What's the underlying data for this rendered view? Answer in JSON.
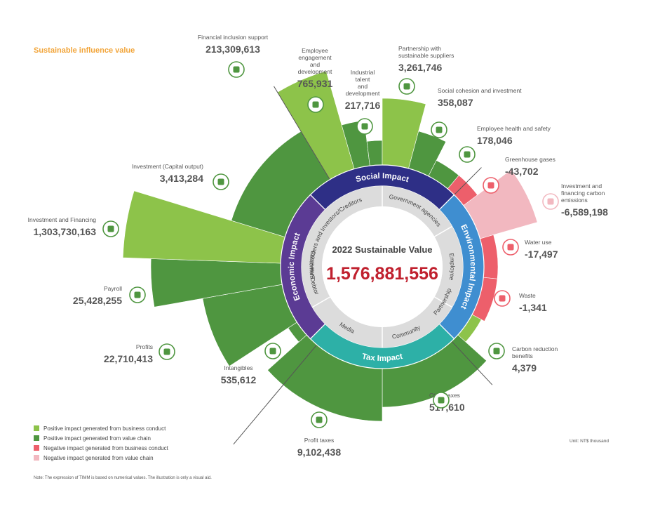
{
  "header": {
    "title": "Sustainable influence value"
  },
  "center": {
    "title": "2022 Sustainable Value",
    "value": "1,576,881,556"
  },
  "rings": {
    "outer": [
      "Social Impact",
      "Environmental Impact",
      "Tax Impact",
      "Economic Impact"
    ],
    "inner": [
      "Shareholders and Investors/Creditors",
      "Government agencies",
      "Employee",
      "Partnership",
      "Community",
      "Media",
      "Customer/Debtor"
    ]
  },
  "colors": {
    "pos_business": "#8dc34a",
    "pos_chain": "#4f9640",
    "neg_business": "#ed5f6b",
    "neg_chain": "#f2b8c0",
    "social": "#2e2f86",
    "environmental": "#3f8ed0",
    "tax": "#2db0a7",
    "economic": "#5b3b94",
    "center_value": "#c0202e",
    "header": "#f2a53a"
  },
  "chart_data": {
    "type": "radial-bar",
    "title": "Sustainable influence value",
    "unit": "Unit: NT$ thousand",
    "items": [
      {
        "label": "Financial inclusion support",
        "value": 213309613,
        "display": "213,309,613",
        "category": "pos_business",
        "icon": "dollar-icon"
      },
      {
        "label": "Employee engagement and development",
        "value": 765931,
        "display": "765,931",
        "category": "pos_chain",
        "icon": "presentation-icon"
      },
      {
        "label": "Industrial talent and development",
        "value": 217716,
        "display": "217,716",
        "category": "pos_chain",
        "icon": "graduation-cap-icon"
      },
      {
        "label": "Partnership with sustainable suppliers",
        "value": 3261746,
        "display": "3,261,746",
        "category": "pos_business",
        "icon": "handshake-icon"
      },
      {
        "label": "Social cohesion and investment",
        "value": 358087,
        "display": "358,087",
        "category": "pos_chain",
        "icon": "growth-chart-icon"
      },
      {
        "label": "Employee health and safety",
        "value": 178046,
        "display": "178,046",
        "category": "pos_chain",
        "icon": "health-person-icon"
      },
      {
        "label": "Greenhouse gases",
        "value": -43702,
        "display": "-43,702",
        "category": "neg_business",
        "icon": "factory-icon"
      },
      {
        "label": "Investment and financing carbon emissions",
        "value": -6589198,
        "display": "-6,589,198",
        "category": "neg_chain",
        "icon": "recycle-icon"
      },
      {
        "label": "Water use",
        "value": -17497,
        "display": "-17,497",
        "category": "neg_business",
        "icon": "water-drop-icon"
      },
      {
        "label": "Waste",
        "value": -1341,
        "display": "-1,341",
        "category": "neg_business",
        "icon": "trash-bin-icon"
      },
      {
        "label": "Carbon reduction benefits",
        "value": 4379,
        "display": "4,379",
        "category": "pos_business",
        "icon": "bar-chart-icon"
      },
      {
        "label": "Other taxes",
        "value": 517610,
        "display": "517,610",
        "category": "pos_chain",
        "icon": "calculator-icon"
      },
      {
        "label": "Profit taxes",
        "value": 9102438,
        "display": "9,102,438",
        "category": "pos_chain",
        "icon": "calculator-icon"
      },
      {
        "label": "Intangibles",
        "value": 535612,
        "display": "535,612",
        "category": "pos_chain",
        "icon": "lightbulb-icon"
      },
      {
        "label": "Profits",
        "value": 22710413,
        "display": "22,710,413",
        "category": "pos_chain",
        "icon": "money-hand-icon"
      },
      {
        "label": "Payroll",
        "value": 25428255,
        "display": "25,428,255",
        "category": "pos_chain",
        "icon": "people-icon"
      },
      {
        "label": "Investment and Financing",
        "value": 1303730163,
        "display": "1,303,730,163",
        "category": "pos_business",
        "icon": "coin-icon"
      },
      {
        "label": "Investment (Capital output)",
        "value": 3413284,
        "display": "3,413,284",
        "category": "pos_chain",
        "icon": "building-icon"
      }
    ]
  },
  "legend": [
    {
      "key": "pos_business",
      "label": "Positive impact generated from business conduct"
    },
    {
      "key": "pos_chain",
      "label": "Positive impact generated from value chain"
    },
    {
      "key": "neg_business",
      "label": "Negative impact generated from business conduct"
    },
    {
      "key": "neg_chain",
      "label": "Negative impact generated from value chain"
    }
  ],
  "footer": {
    "note": "Note: The expression of TIMM is based on numerical values. The illustration is only a visual aid.",
    "unit": "Unit: NT$ thousand"
  }
}
